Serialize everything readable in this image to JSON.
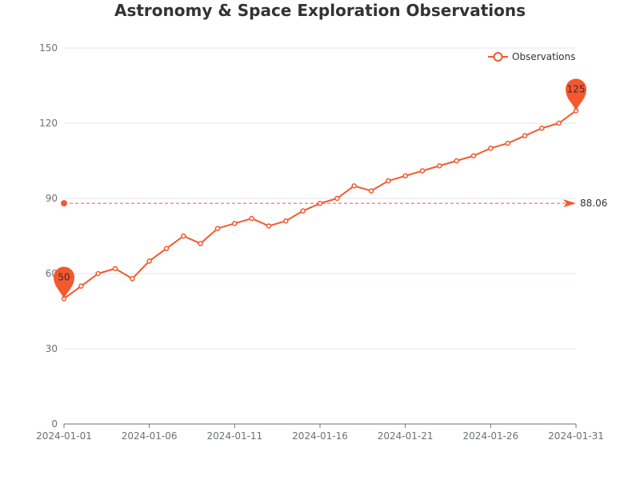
{
  "chart_data": {
    "type": "line",
    "title": "Astronomy & Space Exploration Observations",
    "xlabel": "",
    "ylabel": "",
    "ylim": [
      0,
      150
    ],
    "yticks": [
      0,
      30,
      60,
      90,
      120,
      150
    ],
    "x": [
      "2024-01-01",
      "2024-01-02",
      "2024-01-03",
      "2024-01-04",
      "2024-01-05",
      "2024-01-06",
      "2024-01-07",
      "2024-01-08",
      "2024-01-09",
      "2024-01-10",
      "2024-01-11",
      "2024-01-12",
      "2024-01-13",
      "2024-01-14",
      "2024-01-15",
      "2024-01-16",
      "2024-01-17",
      "2024-01-18",
      "2024-01-19",
      "2024-01-20",
      "2024-01-21",
      "2024-01-22",
      "2024-01-23",
      "2024-01-24",
      "2024-01-25",
      "2024-01-26",
      "2024-01-27",
      "2024-01-28",
      "2024-01-29",
      "2024-01-30",
      "2024-01-31"
    ],
    "xtick_labels": [
      "2024-01-01",
      "2024-01-06",
      "2024-01-11",
      "2024-01-16",
      "2024-01-21",
      "2024-01-26",
      "2024-01-31"
    ],
    "series": [
      {
        "name": "Observations",
        "color": "#f4582e",
        "values": [
          50,
          55,
          60,
          62,
          58,
          65,
          70,
          75,
          72,
          78,
          80,
          82,
          79,
          81,
          85,
          88,
          90,
          95,
          93,
          97,
          99,
          101,
          103,
          105,
          107,
          110,
          112,
          115,
          118,
          120,
          125
        ]
      }
    ],
    "mark_points": [
      {
        "type": "min",
        "value": 50,
        "label": "50"
      },
      {
        "type": "max",
        "value": 125,
        "label": "125"
      }
    ],
    "mark_line": {
      "type": "average",
      "value": 88.06,
      "label": "88.06"
    },
    "legend_position": "top-right",
    "grid": true
  }
}
